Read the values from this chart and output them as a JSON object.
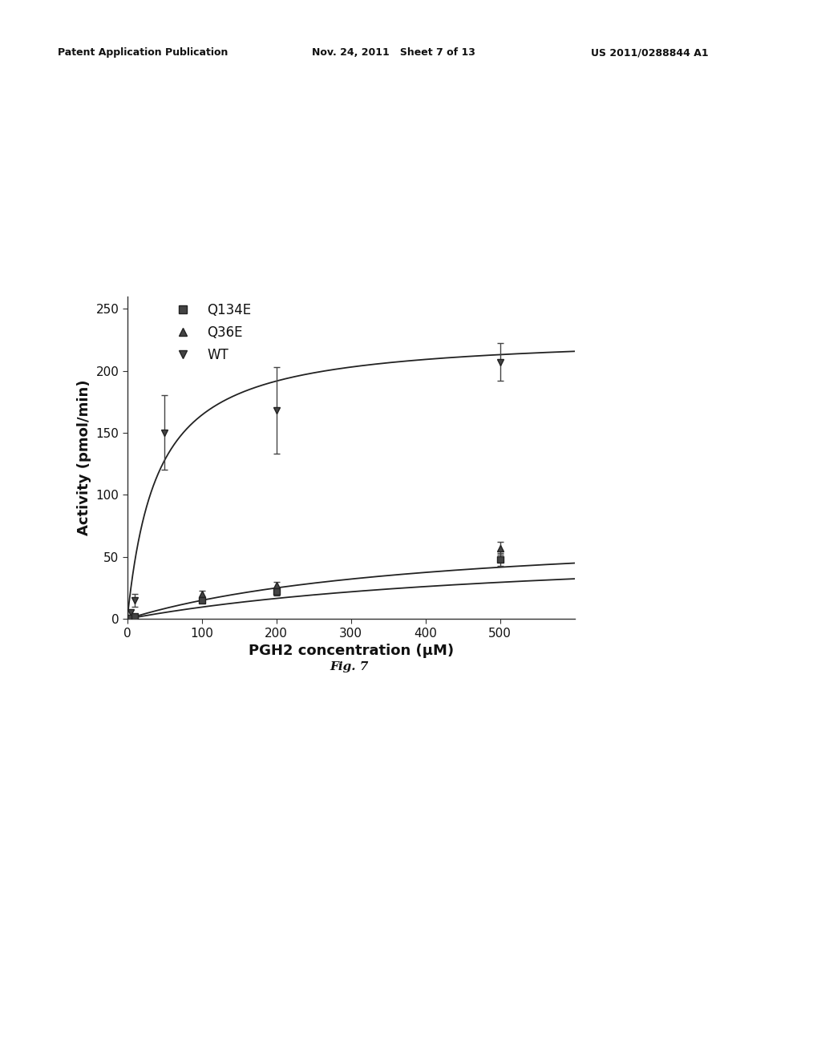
{
  "title": "",
  "xlabel": "PGH2 concentration (μM)",
  "ylabel": "Activity (pmol/min)",
  "xlim": [
    0,
    600
  ],
  "ylim": [
    0,
    260
  ],
  "xticks": [
    0,
    100,
    200,
    300,
    400,
    500
  ],
  "yticks": [
    0,
    50,
    100,
    150,
    200,
    250
  ],
  "fig_caption": "Fig. 7",
  "wt_data": {
    "x": [
      5,
      10,
      50,
      200,
      500
    ],
    "y": [
      5,
      15,
      150,
      168,
      207
    ],
    "yerr": [
      2,
      5,
      30,
      35,
      15
    ],
    "Vmax": 230,
    "Km": 40,
    "label": "WT",
    "marker": "v"
  },
  "q36e_data": {
    "x": [
      5,
      10,
      100,
      200,
      500
    ],
    "y": [
      1,
      2,
      20,
      27,
      57
    ],
    "yerr": [
      0.5,
      1,
      3,
      3,
      5
    ],
    "Vmax": 75,
    "Km": 400,
    "label": "Q36E",
    "marker": "^"
  },
  "q134e_data": {
    "x": [
      5,
      10,
      100,
      200,
      500
    ],
    "y": [
      1,
      2,
      15,
      22,
      48
    ],
    "yerr": [
      0.5,
      1,
      2,
      3,
      5
    ],
    "Vmax": 62,
    "Km": 550,
    "label": "Q134E",
    "marker": "s"
  },
  "header_left": "Patent Application Publication",
  "header_mid": "Nov. 24, 2011   Sheet 7 of 13",
  "header_right": "US 2011/0288844 A1",
  "font_size": 12,
  "tick_font_size": 11,
  "label_font_size": 13,
  "caption_font_size": 11,
  "header_fontsize": 9,
  "line_color": "#222222",
  "marker_color": "#444444",
  "text_color": "#111111"
}
